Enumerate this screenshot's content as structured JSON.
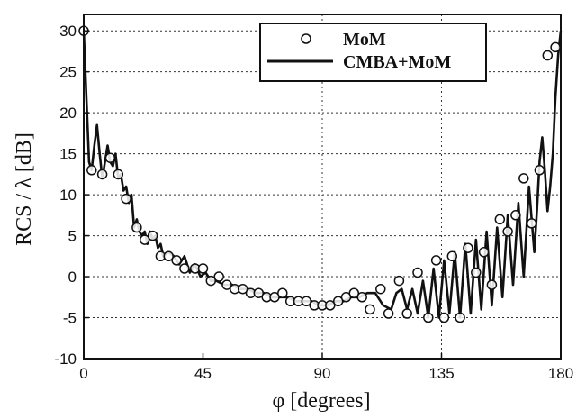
{
  "chart_data": {
    "type": "line",
    "title": "",
    "xlabel": "φ  [degrees]",
    "ylabel": "RCS / λ   [dB]",
    "xlim": [
      0,
      180
    ],
    "ylim": [
      -10,
      32
    ],
    "xticks": [
      0,
      45,
      90,
      135,
      180
    ],
    "yticks": [
      -10,
      -5,
      0,
      5,
      10,
      15,
      20,
      25,
      30
    ],
    "grid": true,
    "legend_position": "top-right",
    "series": [
      {
        "name": "MoM",
        "kind": "markers",
        "marker": "open-circle",
        "color": "#111111",
        "x": [
          0,
          3,
          7,
          10,
          13,
          16,
          20,
          23,
          26,
          29,
          32,
          35,
          38,
          42,
          45,
          48,
          51,
          54,
          57,
          60,
          63,
          66,
          69,
          72,
          75,
          78,
          81,
          84,
          87,
          90,
          93,
          96,
          99,
          102,
          105,
          108,
          112,
          115,
          119,
          122,
          126,
          130,
          133,
          136,
          139,
          142,
          145,
          148,
          151,
          154,
          157,
          160,
          163,
          166,
          169,
          172,
          175,
          178
        ],
        "y": [
          30,
          13,
          12.5,
          14.5,
          12.5,
          9.5,
          6,
          4.5,
          5,
          2.5,
          2.5,
          2,
          1,
          1,
          1,
          -0.5,
          0,
          -1,
          -1.5,
          -1.5,
          -2,
          -2,
          -2.5,
          -2.5,
          -2,
          -3,
          -3,
          -3,
          -3.5,
          -3.5,
          -3.5,
          -3,
          -2.5,
          -2,
          -2.5,
          -4,
          -1.5,
          -4.5,
          -0.5,
          -4.5,
          0.5,
          -5,
          2,
          -5,
          2.5,
          -5,
          3.5,
          0.5,
          3,
          -1,
          7,
          5.5,
          7.5,
          12,
          6.5,
          13,
          27,
          28
        ]
      },
      {
        "name": "CMBA+MoM",
        "kind": "line",
        "color": "#111111",
        "x": [
          0,
          1,
          2,
          3,
          4,
          5,
          6,
          7,
          8,
          9,
          10,
          11,
          12,
          13,
          14,
          15,
          16,
          17,
          18,
          19,
          20,
          21,
          22,
          23,
          24,
          25,
          26,
          27,
          28,
          29,
          30,
          32,
          34,
          36,
          38,
          40,
          42,
          44,
          46,
          48,
          50,
          53,
          56,
          59,
          62,
          65,
          68,
          71,
          74,
          77,
          80,
          83,
          86,
          89,
          92,
          95,
          98,
          101,
          104,
          107,
          110,
          113,
          116,
          118,
          120,
          122,
          124,
          126,
          128,
          130,
          132,
          134,
          136,
          138,
          140,
          142,
          144,
          146,
          148,
          150,
          152,
          154,
          156,
          158,
          160,
          162,
          164,
          166,
          168,
          170,
          171,
          172,
          173,
          174,
          175,
          176,
          177,
          178,
          179,
          180
        ],
        "y": [
          30,
          22,
          14,
          13,
          16,
          18.5,
          15,
          12,
          14,
          16,
          14,
          13.5,
          15,
          12,
          12.5,
          10.5,
          11,
          9,
          10,
          6,
          7,
          5.5,
          5,
          5.5,
          4,
          5.5,
          4.5,
          5,
          3.5,
          4,
          2.5,
          3,
          2.5,
          1.5,
          2.5,
          0.5,
          1.5,
          0,
          0.5,
          -0.5,
          -0.5,
          -1,
          -1,
          -1.5,
          -1.5,
          -2,
          -2,
          -2.5,
          -2.5,
          -2.5,
          -3,
          -3,
          -3,
          -3.5,
          -3.5,
          -3,
          -3,
          -2.5,
          -2.5,
          -2,
          -2,
          -3.5,
          -4,
          -2,
          -1.5,
          -4,
          -1.5,
          -4.5,
          -0.5,
          -5,
          1,
          -5,
          2,
          -4.5,
          3,
          -5,
          4,
          -4.5,
          4.5,
          -4,
          5.5,
          -3.5,
          6,
          -2.5,
          7.5,
          -1,
          9,
          0,
          11,
          3,
          8,
          14,
          17,
          13,
          8,
          11,
          15,
          22,
          27,
          30
        ]
      }
    ]
  }
}
